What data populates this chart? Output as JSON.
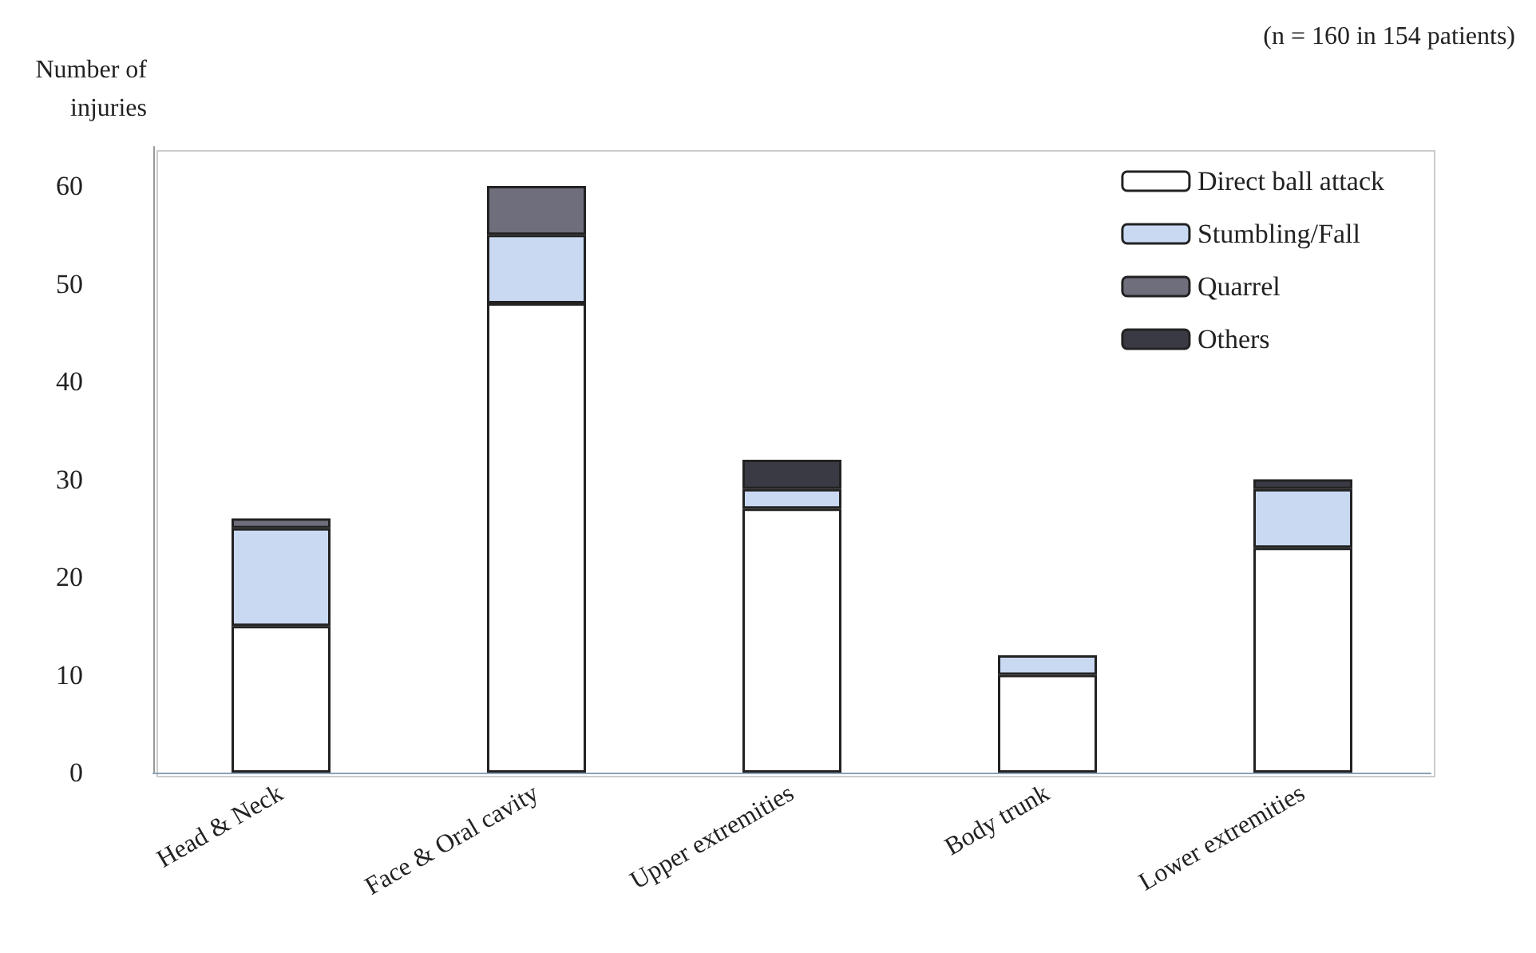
{
  "chart_data": {
    "type": "bar",
    "stacked": true,
    "ylabel": "Number of\ninjuries",
    "annotations": [
      "(n = 160 in 154 patients)"
    ],
    "categories": [
      "Head & Neck",
      "Face & Oral cavity",
      "Upper extremities",
      "Body trunk",
      "Lower extremities"
    ],
    "series": [
      {
        "name": "Direct ball attack",
        "color": "#ffffff",
        "values": [
          15,
          48,
          27,
          10,
          23
        ]
      },
      {
        "name": "Stumbling/Fall",
        "color": "#c9d9f2",
        "values": [
          10,
          7,
          2,
          2,
          6
        ]
      },
      {
        "name": "Quarrel",
        "color": "#6e6e7c",
        "values": [
          1,
          5,
          0,
          0,
          0
        ]
      },
      {
        "name": "Others",
        "color": "#3a3a44",
        "values": [
          0,
          0,
          3,
          0,
          1
        ]
      }
    ],
    "ylim": [
      0,
      64
    ],
    "yticks": [
      0,
      10,
      20,
      30,
      40,
      50,
      60
    ],
    "grid": false,
    "legend": "top right"
  }
}
